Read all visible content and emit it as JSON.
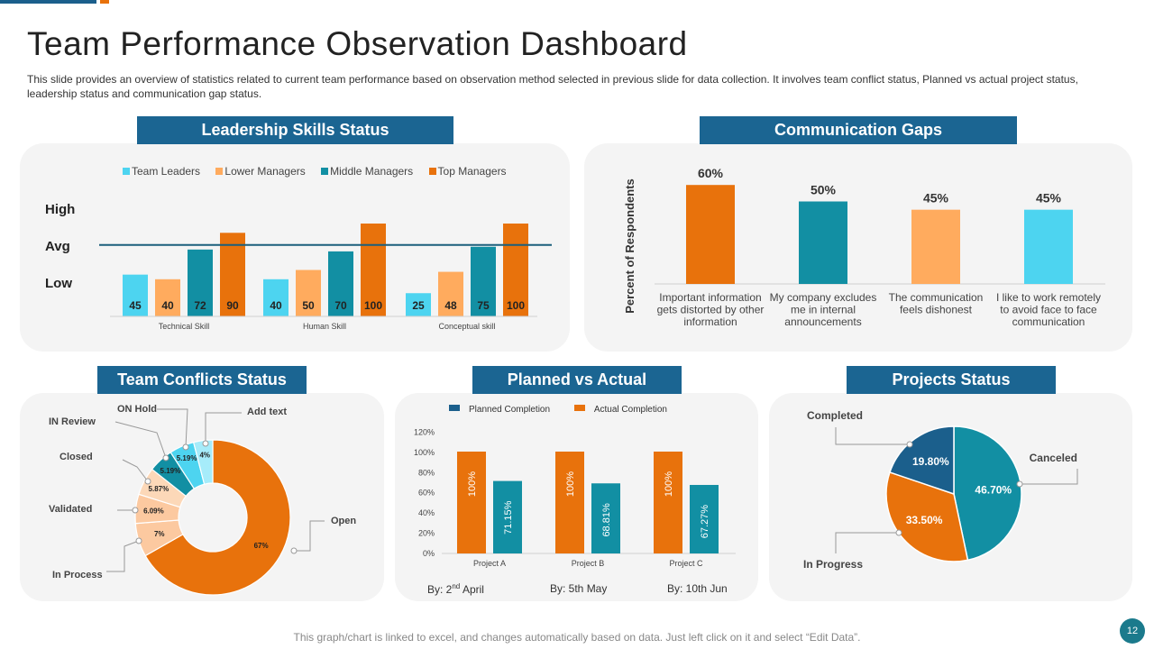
{
  "title": "Team Performance Observation Dashboard",
  "description": "This slide provides  an overview  of statistics related to current team performance  based on observation  method selected in previous  slide for data collection. It involves  team conflict status, Planned vs actual project status, leadership status and communication gap status.",
  "footer": "This graph/chart is linked to excel, and changes automatically based on data. Just left click on it and select “Edit Data”.",
  "page_number": "12",
  "colors": {
    "team_leaders": "#4dd4f0",
    "lower_managers": "#ffab5e",
    "middle_managers": "#128fa3",
    "top_managers": "#e8720c",
    "title_bar": "#1b6592"
  },
  "panels": {
    "leadership": "Leadership Skills Status",
    "communication": "Communication Gaps",
    "conflicts": "Team Conflicts Status",
    "planned": "Planned vs Actual",
    "projects": "Projects Status"
  },
  "chart_data": [
    {
      "id": "leadership",
      "type": "bar",
      "title": "Leadership Skills Status",
      "categories": [
        "Technical Skill",
        "Human Skill",
        "Conceptual skill"
      ],
      "series": [
        {
          "name": "Team Leaders",
          "values": [
            45,
            40,
            25
          ]
        },
        {
          "name": "Lower Managers",
          "values": [
            40,
            50,
            48
          ]
        },
        {
          "name": "Middle Managers",
          "values": [
            72,
            70,
            75
          ]
        },
        {
          "name": "Top Managers",
          "values": [
            90,
            100,
            100
          ]
        }
      ],
      "y_labels": [
        "High",
        "Avg",
        "Low"
      ],
      "ylim": [
        0,
        100
      ],
      "average_line": 75
    },
    {
      "id": "communication",
      "type": "bar",
      "title": "Communication Gaps",
      "ylabel": "Percent of Respondents",
      "categories": [
        "Important information gets distorted by other information",
        "My company excludes me in internal announcements",
        "The communication feels dishonest",
        "I like to work remotely to avoid face to face communication"
      ],
      "category_lines": [
        [
          "Important information",
          "gets distorted by other",
          "information"
        ],
        [
          "My company excludes",
          "me in internal",
          "announcements"
        ],
        [
          "The communication",
          "feels dishonest"
        ],
        [
          "I like to work remotely",
          "to avoid face to face",
          "communication"
        ]
      ],
      "values": [
        60,
        50,
        45,
        45
      ],
      "labels": [
        "60%",
        "50%",
        "45%",
        "45%"
      ],
      "ylim": [
        0,
        60
      ]
    },
    {
      "id": "conflicts",
      "type": "pie",
      "title": "Team Conflicts Status",
      "slices": [
        {
          "name": "Open",
          "value": 67,
          "label": "67%"
        },
        {
          "name": "In Process",
          "value": 7,
          "label": "7%"
        },
        {
          "name": "Validated",
          "value": 6.09,
          "label": "6.09%"
        },
        {
          "name": "Closed",
          "value": 5.87,
          "label": "5.87%"
        },
        {
          "name": "IN Review",
          "value": 5.19,
          "label": "5.19%"
        },
        {
          "name": "ON Hold",
          "value": 5.19,
          "label": "5.19%"
        },
        {
          "name": "Add text",
          "value": 4,
          "label": "4%"
        }
      ]
    },
    {
      "id": "planned",
      "type": "bar",
      "title": "Planned vs Actual",
      "categories": [
        "Project A",
        "Project B",
        "Project C"
      ],
      "series": [
        {
          "name": "Planned Completion",
          "values": [
            100,
            100,
            100
          ],
          "labels": [
            "100%",
            "100%",
            "100%"
          ]
        },
        {
          "name": "Actual Completion",
          "values": [
            71.15,
            68.81,
            67.27
          ],
          "labels": [
            "71.15%",
            "68.81%",
            "67.27%"
          ]
        }
      ],
      "y_ticks": [
        "0%",
        "20%",
        "40%",
        "60%",
        "80%",
        "100%",
        "120%"
      ],
      "ylim": [
        0,
        120
      ],
      "dates": [
        {
          "prefix": "By: 2",
          "sup": "nd",
          "suffix": " April"
        },
        {
          "prefix": "By:  5th May",
          "sup": "",
          "suffix": ""
        },
        {
          "prefix": "By:  10th Jun",
          "sup": "",
          "suffix": ""
        }
      ]
    },
    {
      "id": "projects",
      "type": "pie",
      "title": "Projects Status",
      "slices": [
        {
          "name": "Canceled",
          "value": 46.7,
          "label": "46.70%"
        },
        {
          "name": "In Progress",
          "value": 33.5,
          "label": "33.50%"
        },
        {
          "name": "Completed",
          "value": 19.8,
          "label": "19.80%"
        }
      ]
    }
  ]
}
